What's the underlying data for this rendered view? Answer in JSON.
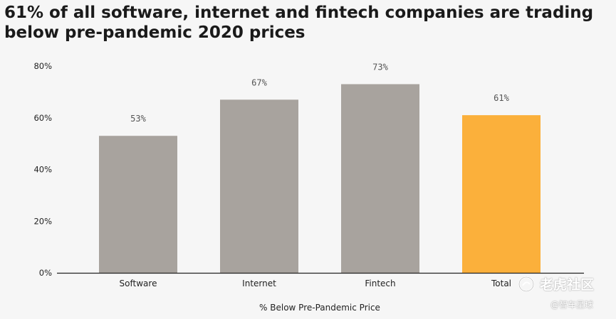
{
  "chart_data": {
    "type": "bar",
    "title": "61% of all software, internet and fintech companies are trading below pre-pandemic 2020 prices",
    "categories": [
      "Software",
      "Internet",
      "Fintech",
      "Total"
    ],
    "values": [
      53,
      67,
      73,
      61
    ],
    "data_labels": [
      "53%",
      "67%",
      "73%",
      "61%"
    ],
    "y_ticks": [
      "0%",
      "20%",
      "40%",
      "60%",
      "80%"
    ],
    "y_tick_values": [
      0,
      20,
      40,
      60,
      80
    ],
    "ylim": [
      0,
      80
    ],
    "xlabel": "% Below Pre-Pandemic Price",
    "ylabel": "",
    "grid": false,
    "colors": {
      "default_bar": "#a8a39e",
      "highlight_bar": "#fbb03b",
      "highlight_category": "Total"
    }
  },
  "watermark": {
    "main": "老虎社区",
    "sub": "@智车星球"
  }
}
